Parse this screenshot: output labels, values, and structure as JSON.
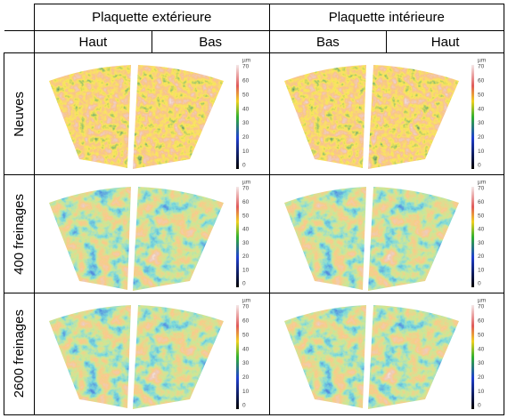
{
  "header": {
    "groups": [
      "Plaquette extérieure",
      "Plaquette intérieure"
    ],
    "subcolumns": [
      "Haut",
      "Bas",
      "Bas",
      "Haut"
    ]
  },
  "rows": [
    "Neuves",
    "400 freinages",
    "2600 freinages"
  ],
  "scale": {
    "unit": "µm",
    "ticks": [
      70,
      60,
      50,
      40,
      30,
      20,
      10,
      0
    ]
  }
}
